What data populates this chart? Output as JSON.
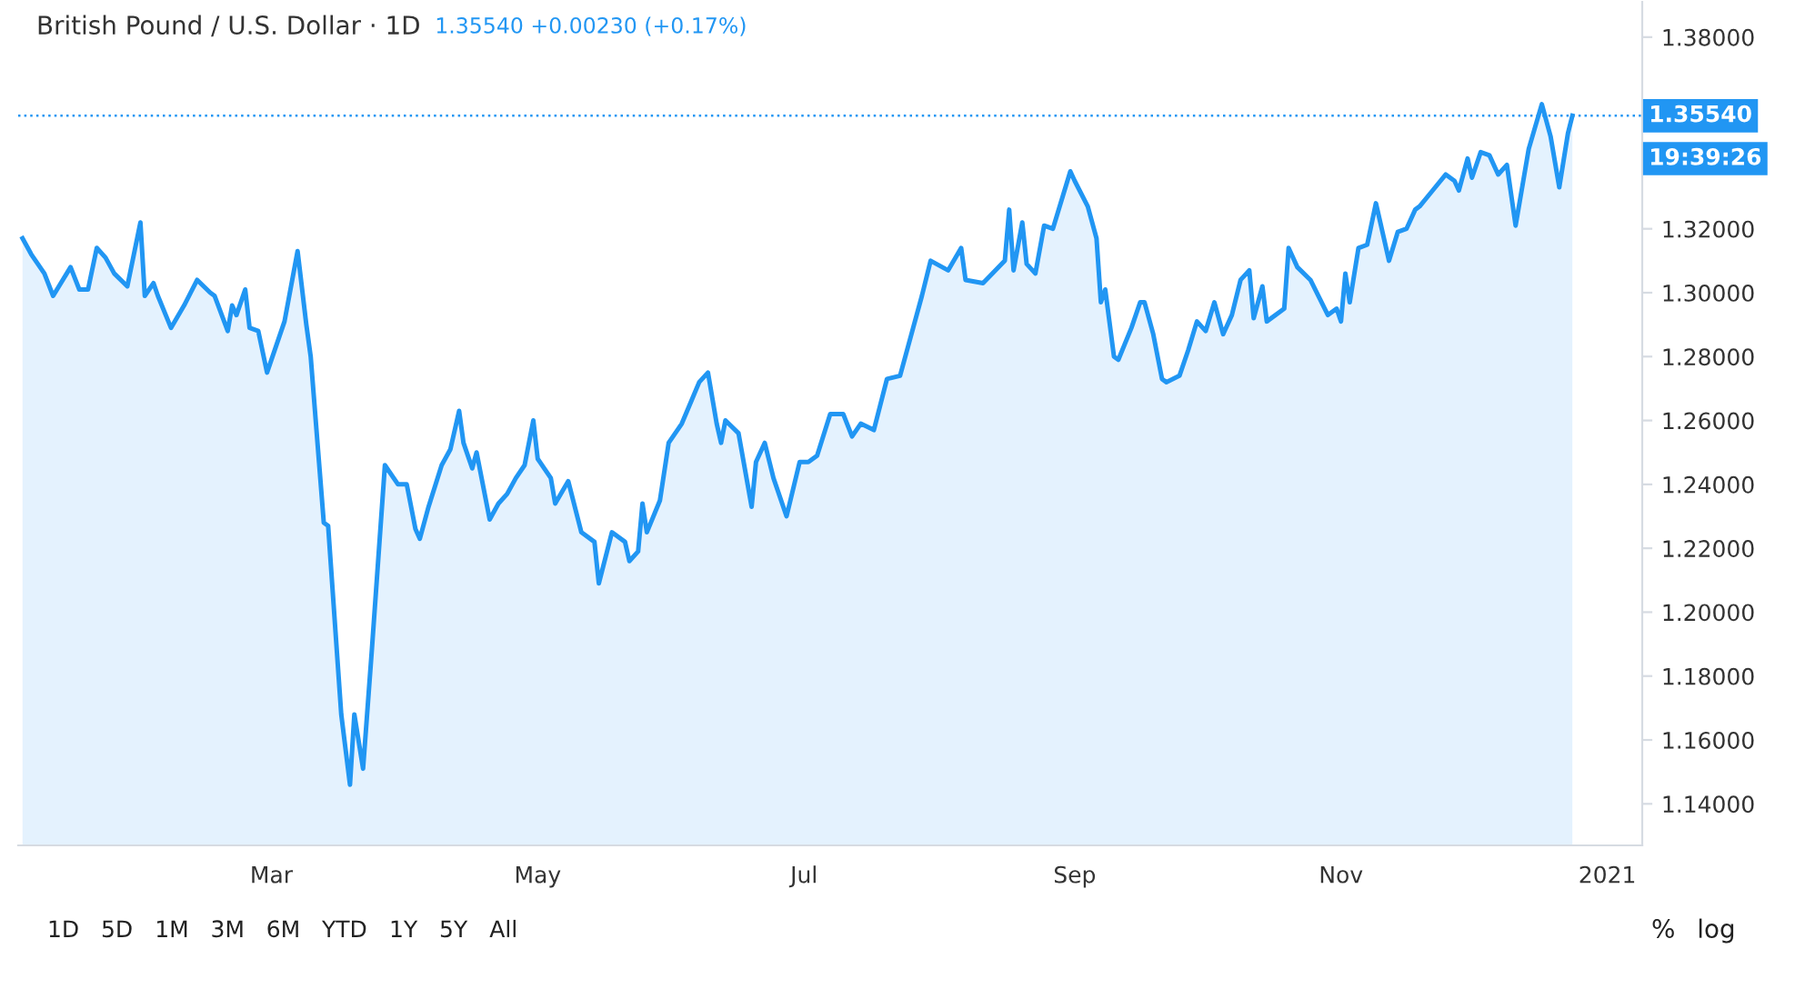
{
  "chart_data": {
    "type": "area",
    "title": "British Pound / U.S. Dollar · 1D",
    "subtitle": "1.35540 +0.00230 (+0.17%)",
    "x": [
      "2020-01-04",
      "2020-01-06",
      "2020-01-09",
      "2020-01-11",
      "2020-01-15",
      "2020-01-17",
      "2020-01-19",
      "2020-01-21",
      "2020-01-23",
      "2020-01-25",
      "2020-01-28",
      "2020-01-31",
      "2020-02-01",
      "2020-02-03",
      "2020-02-04",
      "2020-02-07",
      "2020-02-10",
      "2020-02-13",
      "2020-02-16",
      "2020-02-17",
      "2020-02-20",
      "2020-02-21",
      "2020-02-22",
      "2020-02-24",
      "2020-02-25",
      "2020-02-27",
      "2020-02-29",
      "2020-03-04",
      "2020-03-07",
      "2020-03-09",
      "2020-03-10",
      "2020-03-13",
      "2020-03-14",
      "2020-03-17",
      "2020-03-19",
      "2020-03-20",
      "2020-03-22",
      "2020-03-24",
      "2020-03-27",
      "2020-03-30",
      "2020-04-01",
      "2020-04-03",
      "2020-04-04",
      "2020-04-06",
      "2020-04-09",
      "2020-04-11",
      "2020-04-13",
      "2020-04-14",
      "2020-04-16",
      "2020-04-17",
      "2020-04-20",
      "2020-04-22",
      "2020-04-24",
      "2020-04-26",
      "2020-04-28",
      "2020-04-30",
      "2020-05-01",
      "2020-05-04",
      "2020-05-05",
      "2020-05-08",
      "2020-05-11",
      "2020-05-14",
      "2020-05-15",
      "2020-05-18",
      "2020-05-21",
      "2020-05-22",
      "2020-05-24",
      "2020-05-25",
      "2020-05-26",
      "2020-05-29",
      "2020-05-31",
      "2020-06-03",
      "2020-06-07",
      "2020-06-09",
      "2020-06-11",
      "2020-06-12",
      "2020-06-13",
      "2020-06-16",
      "2020-06-19",
      "2020-06-20",
      "2020-06-22",
      "2020-06-24",
      "2020-06-27",
      "2020-06-30",
      "2020-07-02",
      "2020-07-04",
      "2020-07-07",
      "2020-07-10",
      "2020-07-12",
      "2020-07-14",
      "2020-07-17",
      "2020-07-20",
      "2020-07-23",
      "2020-07-26",
      "2020-07-28",
      "2020-07-30",
      "2020-08-03",
      "2020-08-06",
      "2020-08-07",
      "2020-08-11",
      "2020-08-16",
      "2020-08-17",
      "2020-08-18",
      "2020-08-20",
      "2020-08-21",
      "2020-08-23",
      "2020-08-25",
      "2020-08-27",
      "2020-08-31",
      "2020-09-01",
      "2020-09-04",
      "2020-09-06",
      "2020-09-07",
      "2020-09-08",
      "2020-09-10",
      "2020-09-11",
      "2020-09-14",
      "2020-09-16",
      "2020-09-17",
      "2020-09-19",
      "2020-09-21",
      "2020-09-22",
      "2020-09-25",
      "2020-09-27",
      "2020-09-29",
      "2020-10-01",
      "2020-10-03",
      "2020-10-05",
      "2020-10-07",
      "2020-10-09",
      "2020-10-11",
      "2020-10-12",
      "2020-10-14",
      "2020-10-15",
      "2020-10-19",
      "2020-10-20",
      "2020-10-22",
      "2020-10-25",
      "2020-10-29",
      "2020-10-31",
      "2020-11-01",
      "2020-11-02",
      "2020-11-03",
      "2020-11-05",
      "2020-11-07",
      "2020-11-09",
      "2020-11-10",
      "2020-11-12",
      "2020-11-14",
      "2020-11-16",
      "2020-11-18",
      "2020-11-19",
      "2020-11-22",
      "2020-11-25",
      "2020-11-27",
      "2020-11-28",
      "2020-11-30",
      "2020-12-01",
      "2020-12-03",
      "2020-12-05",
      "2020-12-07",
      "2020-12-09",
      "2020-12-11",
      "2020-12-14",
      "2020-12-17",
      "2020-12-19",
      "2020-12-21",
      "2020-12-23",
      "2020-12-24"
    ],
    "series": [
      {
        "color": "#2196f3",
        "values": [
          1.317,
          1.312,
          1.306,
          1.299,
          1.308,
          1.301,
          1.301,
          1.314,
          1.311,
          1.306,
          1.302,
          1.322,
          1.299,
          1.303,
          1.299,
          1.289,
          1.296,
          1.304,
          1.3,
          1.299,
          1.288,
          1.296,
          1.293,
          1.301,
          1.289,
          1.288,
          1.275,
          1.291,
          1.313,
          1.29,
          1.28,
          1.228,
          1.227,
          1.168,
          1.146,
          1.168,
          1.151,
          1.188,
          1.246,
          1.24,
          1.24,
          1.226,
          1.223,
          1.233,
          1.246,
          1.251,
          1.263,
          1.253,
          1.245,
          1.25,
          1.229,
          1.234,
          1.237,
          1.242,
          1.246,
          1.26,
          1.248,
          1.242,
          1.234,
          1.241,
          1.225,
          1.222,
          1.209,
          1.225,
          1.222,
          1.216,
          1.219,
          1.234,
          1.225,
          1.235,
          1.253,
          1.259,
          1.272,
          1.275,
          1.259,
          1.253,
          1.26,
          1.256,
          1.233,
          1.247,
          1.253,
          1.242,
          1.23,
          1.247,
          1.247,
          1.249,
          1.262,
          1.262,
          1.255,
          1.259,
          1.257,
          1.273,
          1.274,
          1.289,
          1.299,
          1.31,
          1.307,
          1.314,
          1.304,
          1.303,
          1.31,
          1.326,
          1.307,
          1.322,
          1.309,
          1.306,
          1.321,
          1.32,
          1.338,
          1.335,
          1.327,
          1.317,
          1.297,
          1.301,
          1.28,
          1.279,
          1.289,
          1.297,
          1.297,
          1.287,
          1.273,
          1.272,
          1.274,
          1.282,
          1.291,
          1.288,
          1.297,
          1.287,
          1.293,
          1.304,
          1.307,
          1.292,
          1.302,
          1.291,
          1.295,
          1.314,
          1.308,
          1.304,
          1.293,
          1.295,
          1.291,
          1.306,
          1.297,
          1.314,
          1.315,
          1.328,
          1.322,
          1.31,
          1.319,
          1.32,
          1.326,
          1.327,
          1.332,
          1.337,
          1.335,
          1.332,
          1.342,
          1.336,
          1.344,
          1.343,
          1.337,
          1.34,
          1.321,
          1.345,
          1.359,
          1.349,
          1.333,
          1.35,
          1.3554
        ]
      }
    ],
    "xlim": [
      "2020-01-03",
      "2021-01-09"
    ],
    "xticks": [
      {
        "value": "2020-03-01",
        "label": "Mar"
      },
      {
        "value": "2020-05-01",
        "label": "May"
      },
      {
        "value": "2020-07-01",
        "label": "Jul"
      },
      {
        "value": "2020-09-01",
        "label": "Sep"
      },
      {
        "value": "2020-11-01",
        "label": "Nov"
      },
      {
        "value": "2021-01-01",
        "label": "2021"
      }
    ],
    "ylim": [
      1.127,
      1.391
    ],
    "yticks": [
      {
        "value": 1.14,
        "label": "1.14000"
      },
      {
        "value": 1.16,
        "label": "1.16000"
      },
      {
        "value": 1.18,
        "label": "1.18000"
      },
      {
        "value": 1.2,
        "label": "1.20000"
      },
      {
        "value": 1.22,
        "label": "1.22000"
      },
      {
        "value": 1.24,
        "label": "1.24000"
      },
      {
        "value": 1.26,
        "label": "1.26000"
      },
      {
        "value": 1.28,
        "label": "1.28000"
      },
      {
        "value": 1.3,
        "label": "1.30000"
      },
      {
        "value": 1.32,
        "label": "1.32000"
      },
      {
        "value": 1.34,
        "label": null
      },
      {
        "value": 1.36,
        "label": null
      },
      {
        "value": 1.38,
        "label": "1.38000"
      }
    ],
    "ref_lines": [
      {
        "axis": "y",
        "value": 1.3554,
        "label": "1.35540",
        "color": "#2196f3",
        "line_style": "dotted"
      }
    ],
    "annotations": [
      "19:39:26",
      "1D",
      "5D",
      "1M",
      "3M",
      "6M",
      "YTD",
      "1Y",
      "5Y",
      "All",
      "%",
      "log"
    ],
    "grid": false,
    "marker": "none",
    "line_style": "solid"
  }
}
